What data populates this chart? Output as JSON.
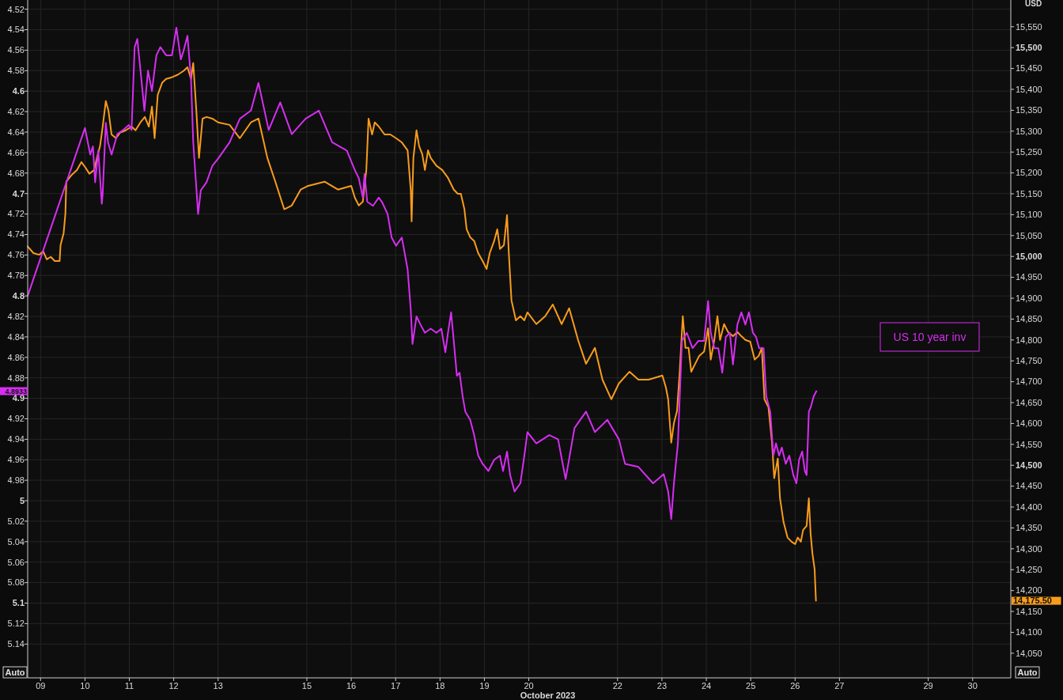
{
  "chart_data": {
    "type": "line",
    "xlabel": "October 2023",
    "y2label": "USD",
    "legend": "right",
    "grid": true,
    "xlim": [
      8.71,
      30.86
    ],
    "xticks": [
      {
        "value": 9,
        "label": "09"
      },
      10,
      11,
      12,
      13,
      15,
      16,
      17,
      18,
      19,
      20,
      22,
      23,
      24,
      25,
      26,
      27,
      29,
      30
    ],
    "ylim": [
      5.173,
      4.511
    ],
    "yticks": [
      4.52,
      4.54,
      4.56,
      4.58,
      4.6,
      4.62,
      4.64,
      4.66,
      4.68,
      4.7,
      4.72,
      4.74,
      4.76,
      4.78,
      4.8,
      4.82,
      4.84,
      4.86,
      4.88,
      4.9,
      4.92,
      4.94,
      4.96,
      4.98,
      5,
      5.02,
      5.04,
      5.06,
      5.08,
      5.1,
      5.12,
      5.14
    ],
    "y2lim": [
      13991,
      15614
    ],
    "y2ticks": [
      {
        "value": 14050,
        "label": "14,050"
      },
      {
        "value": 14100,
        "label": "14,100"
      },
      {
        "value": 14150,
        "label": "14,150"
      },
      {
        "value": 14200,
        "label": "14,200"
      },
      {
        "value": 14250,
        "label": "14,250"
      },
      {
        "value": 14300,
        "label": "14,300"
      },
      {
        "value": 14350,
        "label": "14,350"
      },
      {
        "value": 14400,
        "label": "14,400"
      },
      {
        "value": 14450,
        "label": "14,450"
      },
      {
        "value": 14500,
        "label": "14,500"
      },
      {
        "value": 14550,
        "label": "14,550"
      },
      {
        "value": 14600,
        "label": "14,600"
      },
      {
        "value": 14650,
        "label": "14,650"
      },
      {
        "value": 14700,
        "label": "14,700"
      },
      {
        "value": 14750,
        "label": "14,750"
      },
      {
        "value": 14800,
        "label": "14,800"
      },
      {
        "value": 14850,
        "label": "14,850"
      },
      {
        "value": 14900,
        "label": "14,900"
      },
      {
        "value": 14950,
        "label": "14,950"
      },
      {
        "value": 15000,
        "label": "15,000"
      },
      {
        "value": 15050,
        "label": "15,050"
      },
      {
        "value": 15100,
        "label": "15,100"
      },
      {
        "value": 15150,
        "label": "15,150"
      },
      {
        "value": 15200,
        "label": "15,200"
      },
      {
        "value": 15250,
        "label": "15,250"
      },
      {
        "value": 15300,
        "label": "15,300"
      },
      {
        "value": 15350,
        "label": "15,350"
      },
      {
        "value": 15400,
        "label": "15,400"
      },
      {
        "value": 15450,
        "label": "15,450"
      },
      {
        "value": 15500,
        "label": "15,500"
      },
      {
        "value": 15550,
        "label": "15,550"
      }
    ],
    "series": [
      {
        "color": "#f89c1c",
        "axis": "y2",
        "x": [
          8.71,
          8.84,
          8.97,
          9.06,
          9.14,
          9.23,
          9.32,
          9.43,
          9.45,
          9.52,
          9.56,
          9.58,
          9.69,
          9.82,
          9.92,
          10.01,
          10.1,
          10.21,
          10.27,
          10.34,
          10.4,
          10.47,
          10.53,
          10.6,
          10.7,
          10.79,
          10.92,
          11.05,
          11.14,
          11.25,
          11.35,
          11.44,
          11.51,
          11.57,
          11.64,
          11.74,
          11.83,
          11.96,
          12.09,
          12.22,
          12.31,
          12.39,
          12.44,
          12.51,
          12.57,
          12.65,
          12.74,
          12.87,
          13,
          13.26,
          13.49,
          13.74,
          13.91,
          14.11,
          14.29,
          14.49,
          14.66,
          14.86,
          15.03,
          15.4,
          15.7,
          16,
          16.08,
          16.17,
          16.26,
          16.34,
          16.39,
          16.47,
          16.53,
          16.62,
          16.75,
          16.88,
          17.01,
          17.14,
          17.27,
          17.34,
          17.36,
          17.4,
          17.47,
          17.53,
          17.6,
          17.66,
          17.73,
          17.79,
          17.92,
          18.05,
          18.18,
          18.31,
          18.4,
          18.47,
          18.55,
          18.6,
          18.68,
          18.77,
          18.86,
          18.96,
          19.05,
          19.12,
          19.22,
          19.29,
          19.35,
          19.44,
          19.51,
          19.55,
          19.61,
          19.71,
          19.81,
          19.9,
          19.97,
          20.17,
          20.37,
          20.54,
          20.74,
          20.91,
          21.11,
          21.29,
          21.49,
          21.66,
          21.86,
          22.03,
          22.27,
          22.47,
          22.7,
          23.01,
          23.09,
          23.14,
          23.21,
          23.27,
          23.34,
          23.4,
          23.47,
          23.53,
          23.6,
          23.66,
          23.75,
          23.84,
          23.95,
          24.04,
          24.1,
          24.18,
          24.25,
          24.31,
          24.4,
          24.49,
          24.6,
          24.7,
          24.79,
          24.88,
          24.99,
          25.09,
          25.18,
          25.25,
          25.31,
          25.4,
          25.48,
          25.53,
          25.61,
          25.66,
          25.74,
          25.83,
          25.92,
          26,
          26.06,
          26.13,
          26.18,
          26.26,
          26.31,
          26.35,
          26.39,
          26.44,
          26.47
        ],
        "values": [
          15024,
          15008,
          15004,
          15012,
          14993,
          14999,
          14989,
          14989,
          15027,
          15056,
          15103,
          15179,
          15194,
          15207,
          15226,
          15213,
          15198,
          15207,
          15236,
          15264,
          15311,
          15372,
          15349,
          15292,
          15283,
          15296,
          15302,
          15311,
          15302,
          15321,
          15334,
          15311,
          15359,
          15283,
          15387,
          15416,
          15425,
          15429,
          15435,
          15444,
          15453,
          15425,
          15463,
          15349,
          15236,
          15330,
          15334,
          15330,
          15321,
          15315,
          15283,
          15321,
          15330,
          15236,
          15179,
          15113,
          15122,
          15160,
          15169,
          15179,
          15160,
          15169,
          15141,
          15122,
          15131,
          15207,
          15330,
          15292,
          15321,
          15311,
          15292,
          15292,
          15283,
          15273,
          15254,
          15160,
          15084,
          15236,
          15302,
          15264,
          15245,
          15207,
          15254,
          15236,
          15217,
          15207,
          15188,
          15160,
          15150,
          15150,
          15113,
          15065,
          15046,
          15037,
          15008,
          14989,
          14970,
          15008,
          15037,
          15065,
          15018,
          15027,
          15099,
          15008,
          14895,
          14847,
          14857,
          14847,
          14866,
          14838,
          14857,
          14885,
          14838,
          14876,
          14800,
          14743,
          14781,
          14705,
          14658,
          14696,
          14724,
          14705,
          14705,
          14715,
          14686,
          14658,
          14554,
          14601,
          14630,
          14724,
          14857,
          14781,
          14781,
          14724,
          14743,
          14762,
          14772,
          14828,
          14753,
          14800,
          14857,
          14800,
          14838,
          14819,
          14809,
          14819,
          14809,
          14800,
          14796,
          14753,
          14762,
          14781,
          14658,
          14639,
          14554,
          14469,
          14516,
          14421,
          14364,
          14327,
          14317,
          14311,
          14327,
          14317,
          14345,
          14355,
          14421,
          14336,
          14289,
          14251,
          14175.5
        ]
      },
      {
        "name": "US 10 year inv",
        "color": "#d62ef2",
        "x": [
          8.71,
          10,
          10.12,
          10.18,
          10.23,
          10.3,
          10.38,
          10.4,
          10.47,
          10.52,
          10.6,
          10.73,
          10.86,
          10.99,
          11.05,
          11.12,
          11.18,
          11.27,
          11.34,
          11.42,
          11.51,
          11.61,
          11.7,
          11.83,
          11.96,
          12.06,
          12.16,
          12.22,
          12.31,
          12.39,
          12.44,
          12.55,
          12.61,
          12.74,
          12.87,
          13,
          13.26,
          13.49,
          13.74,
          13.91,
          14.14,
          14.4,
          14.66,
          14.97,
          15.27,
          15.57,
          15.9,
          16.08,
          16.17,
          16.26,
          16.3,
          16.36,
          16.49,
          16.62,
          16.69,
          16.82,
          16.91,
          17.01,
          17.14,
          17.27,
          17.34,
          17.38,
          17.47,
          17.56,
          17.66,
          17.79,
          17.92,
          18.03,
          18.12,
          18.18,
          18.25,
          18.31,
          18.38,
          18.44,
          18.51,
          18.57,
          18.68,
          18.77,
          18.86,
          18.96,
          19.09,
          19.22,
          19.35,
          19.42,
          19.51,
          19.58,
          19.68,
          19.81,
          19.9,
          19.97,
          20.17,
          20.46,
          20.66,
          20.83,
          21.03,
          21.29,
          21.49,
          21.77,
          22.03,
          22.17,
          22.47,
          22.8,
          23.04,
          23.14,
          23.21,
          23.27,
          23.36,
          23.45,
          23.56,
          23.69,
          23.82,
          23.95,
          24.04,
          24.1,
          24.18,
          24.27,
          24.36,
          24.44,
          24.53,
          24.6,
          24.7,
          24.79,
          24.88,
          24.96,
          25.05,
          25.12,
          25.19,
          25.29,
          25.35,
          25.44,
          25.51,
          25.57,
          25.64,
          25.7,
          25.79,
          25.87,
          25.96,
          26.03,
          26.09,
          26.16,
          26.22,
          26.26,
          26.31,
          26.35,
          26.42,
          26.48
        ],
        "values": [
          4.8,
          4.636,
          4.662,
          4.654,
          4.689,
          4.658,
          4.71,
          4.7,
          4.631,
          4.65,
          4.662,
          4.642,
          4.638,
          4.633,
          4.638,
          4.557,
          4.549,
          4.588,
          4.619,
          4.58,
          4.6,
          4.565,
          4.557,
          4.565,
          4.565,
          4.538,
          4.569,
          4.561,
          4.546,
          4.588,
          4.65,
          4.72,
          4.697,
          4.689,
          4.673,
          4.666,
          4.65,
          4.627,
          4.619,
          4.592,
          4.638,
          4.611,
          4.642,
          4.627,
          4.619,
          4.65,
          4.658,
          4.677,
          4.685,
          4.704,
          4.681,
          4.708,
          4.712,
          4.704,
          4.708,
          4.72,
          4.743,
          4.751,
          4.743,
          4.774,
          4.813,
          4.847,
          4.82,
          4.828,
          4.836,
          4.832,
          4.836,
          4.832,
          4.855,
          4.836,
          4.816,
          4.844,
          4.878,
          4.875,
          4.898,
          4.913,
          4.921,
          4.936,
          4.956,
          4.964,
          4.971,
          4.96,
          4.956,
          4.971,
          4.952,
          4.975,
          4.991,
          4.983,
          4.956,
          4.933,
          4.944,
          4.936,
          4.94,
          4.979,
          4.929,
          4.913,
          4.933,
          4.921,
          4.94,
          4.964,
          4.967,
          4.983,
          4.974,
          4.991,
          5.018,
          4.983,
          4.944,
          4.844,
          4.836,
          4.851,
          4.844,
          4.844,
          4.805,
          4.836,
          4.851,
          4.851,
          4.875,
          4.84,
          4.836,
          4.867,
          4.828,
          4.816,
          4.828,
          4.816,
          4.836,
          4.84,
          4.851,
          4.851,
          4.898,
          4.913,
          4.956,
          4.944,
          4.956,
          4.948,
          4.964,
          4.956,
          4.975,
          4.983,
          4.96,
          4.952,
          4.971,
          4.975,
          4.913,
          4.909,
          4.898,
          4.893
        ]
      }
    ],
    "annotations": [
      "Auto",
      "Auto",
      "4.8933",
      "14,175.50"
    ]
  }
}
